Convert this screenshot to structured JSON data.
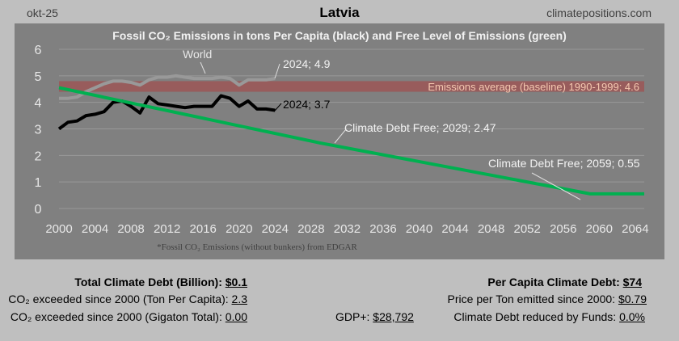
{
  "header": {
    "date": "okt-25",
    "country": "Latvia",
    "site": "climatepositions.com"
  },
  "chart_data": {
    "type": "line",
    "title": "Fossil CO₂ Emissions in tons Per Capita (black) and Free Level of Emissions (green)",
    "xlim": [
      2000,
      2065
    ],
    "ylim": [
      0,
      6
    ],
    "grid": true,
    "x_ticks": [
      2000,
      2004,
      2008,
      2012,
      2016,
      2020,
      2024,
      2028,
      2032,
      2036,
      2040,
      2044,
      2048,
      2052,
      2056,
      2060,
      2064
    ],
    "y_ticks": [
      0,
      1,
      2,
      3,
      4,
      5,
      6
    ],
    "colors": {
      "latvia": "#000000",
      "world": "#999999",
      "free": "#00b050",
      "baseline": "#a05050"
    },
    "baseline": {
      "value": 4.6,
      "label": "Emissions average (baseline) 1990-1999; 4.6"
    },
    "series": [
      {
        "name": "Latvia",
        "x": [
          2000,
          2001,
          2002,
          2003,
          2004,
          2005,
          2006,
          2007,
          2008,
          2009,
          2010,
          2011,
          2012,
          2013,
          2014,
          2015,
          2016,
          2017,
          2018,
          2019,
          2020,
          2021,
          2022,
          2023,
          2024
        ],
        "values": [
          3.0,
          3.25,
          3.3,
          3.5,
          3.55,
          3.65,
          4.0,
          4.05,
          3.85,
          3.6,
          4.2,
          3.95,
          3.9,
          3.85,
          3.8,
          3.85,
          3.85,
          3.85,
          4.25,
          4.15,
          3.85,
          4.05,
          3.75,
          3.75,
          3.7
        ]
      },
      {
        "name": "World",
        "x": [
          2000,
          2001,
          2002,
          2003,
          2004,
          2005,
          2006,
          2007,
          2008,
          2009,
          2010,
          2011,
          2012,
          2013,
          2014,
          2015,
          2016,
          2017,
          2018,
          2019,
          2020,
          2021,
          2022,
          2023,
          2024
        ],
        "values": [
          4.15,
          4.15,
          4.2,
          4.4,
          4.55,
          4.7,
          4.8,
          4.8,
          4.75,
          4.65,
          4.85,
          4.95,
          4.95,
          5.0,
          4.95,
          4.9,
          4.9,
          4.9,
          4.95,
          4.9,
          4.65,
          4.85,
          4.85,
          4.85,
          4.9
        ]
      },
      {
        "name": "Climate Debt Free",
        "x": [
          2000,
          2029,
          2059,
          2065
        ],
        "values": [
          4.55,
          2.47,
          0.55,
          0.55
        ]
      }
    ],
    "annotations": {
      "world": "World",
      "world_2024": "2024; 4.9",
      "latvia_2024": "2024; 3.7",
      "free_2029": "Climate Debt Free; 2029; 2.47",
      "free_2059": "Climate Debt Free; 2059; 0.55"
    },
    "footnote": "*Fossil CO₂ Emissions (without bunkers) from EDGAR"
  },
  "stats": {
    "total_debt_label": "Total Climate Debt (Billion):",
    "total_debt": "$0.1",
    "exceeded_pc_label": "CO₂ exceeded since 2000 (Ton Per Capita):",
    "exceeded_pc": "2.3",
    "exceeded_gt_label": "CO₂ exceeded since 2000 (Gigaton Total):",
    "exceeded_gt": "0.00",
    "gdp_label": "GDP+:",
    "gdp": "$28,792",
    "per_capita_debt_label": "Per Capita Climate Debt:",
    "per_capita_debt": "$74",
    "price_label": "Price per Ton emitted since 2000:",
    "price": "$0.79",
    "funds_label": "Climate Debt reduced by Funds:",
    "funds": "0.0%"
  }
}
